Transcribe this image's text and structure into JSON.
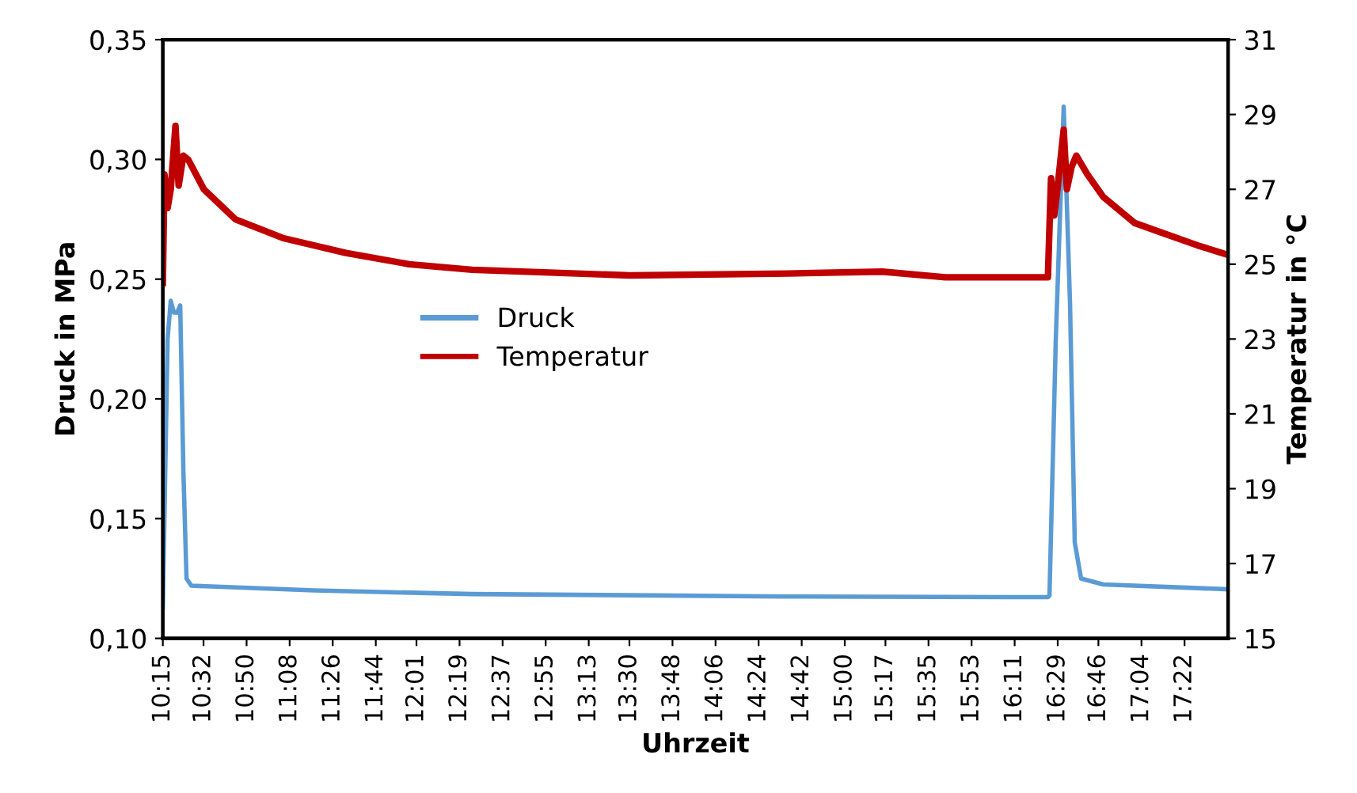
{
  "chart_data": {
    "type": "line",
    "xlabel": "Uhrzeit",
    "ylabel": "Druck in MPa",
    "y2label": "Temperatur in °C",
    "xlim": [
      10.25,
      17.67
    ],
    "xticks": [
      {
        "value": 10.25,
        "label": "10:15"
      },
      {
        "value": 10.5333,
        "label": "10:32"
      },
      {
        "value": 10.8333,
        "label": "10:50"
      },
      {
        "value": 11.1333,
        "label": "11:08"
      },
      {
        "value": 11.4333,
        "label": "11:26"
      },
      {
        "value": 11.7333,
        "label": "11:44"
      },
      {
        "value": 12.0167,
        "label": "12:01"
      },
      {
        "value": 12.3167,
        "label": "12:19"
      },
      {
        "value": 12.6167,
        "label": "12:37"
      },
      {
        "value": 12.9167,
        "label": "12:55"
      },
      {
        "value": 13.2167,
        "label": "13:13"
      },
      {
        "value": 13.5,
        "label": "13:30"
      },
      {
        "value": 13.8,
        "label": "13:48"
      },
      {
        "value": 14.1,
        "label": "14:06"
      },
      {
        "value": 14.4,
        "label": "14:24"
      },
      {
        "value": 14.7,
        "label": "14:42"
      },
      {
        "value": 15.0,
        "label": "15:00"
      },
      {
        "value": 15.2833,
        "label": "15:17"
      },
      {
        "value": 15.5833,
        "label": "15:35"
      },
      {
        "value": 15.8833,
        "label": "15:53"
      },
      {
        "value": 16.1833,
        "label": "16:11"
      },
      {
        "value": 16.4833,
        "label": "16:29"
      },
      {
        "value": 16.7667,
        "label": "16:46"
      },
      {
        "value": 17.0667,
        "label": "17:04"
      },
      {
        "value": 17.3667,
        "label": "17:22"
      }
    ],
    "ylim": [
      0.1,
      0.35
    ],
    "yticks": [
      {
        "value": 0.1,
        "label": "0,10"
      },
      {
        "value": 0.15,
        "label": "0,15"
      },
      {
        "value": 0.2,
        "label": "0,20"
      },
      {
        "value": 0.25,
        "label": "0,25"
      },
      {
        "value": 0.3,
        "label": "0,30"
      },
      {
        "value": 0.35,
        "label": "0,35"
      }
    ],
    "y2lim": [
      15,
      31
    ],
    "y2ticks": [
      15,
      17,
      19,
      21,
      23,
      25,
      27,
      29,
      31
    ],
    "grid": false,
    "legend": "center",
    "marker": "none",
    "line_style": "solid",
    "series": [
      {
        "name": "Druck",
        "color": "#5b9bd5",
        "x": [
          10.25,
          10.283,
          10.305,
          10.327,
          10.349,
          10.371,
          10.393,
          10.415,
          10.448,
          11.305,
          12.404,
          13.503,
          14.602,
          16.415,
          16.426,
          16.47,
          16.525,
          16.569,
          16.602,
          16.646,
          16.8,
          17.668
        ],
        "values": [
          0.113,
          0.225,
          0.241,
          0.236,
          0.236,
          0.239,
          0.17,
          0.125,
          0.122,
          0.12,
          0.1185,
          0.118,
          0.1175,
          0.1172,
          0.118,
          0.225,
          0.322,
          0.24,
          0.14,
          0.125,
          0.1225,
          0.1205
        ]
      },
      {
        "name": "Temperatur",
        "color": "#c00000",
        "axis": "y2",
        "x": [
          10.25,
          10.261,
          10.283,
          10.305,
          10.338,
          10.36,
          10.393,
          10.426,
          10.536,
          10.755,
          11.085,
          11.525,
          11.964,
          12.404,
          13.503,
          14.602,
          15.261,
          15.701,
          16.415,
          16.426,
          16.437,
          16.459,
          16.481,
          16.525,
          16.547,
          16.58,
          16.613,
          16.69,
          16.8,
          17.019,
          17.239,
          17.459,
          17.668
        ],
        "values": [
          24.5,
          27.4,
          26.5,
          27.0,
          28.7,
          27.1,
          27.9,
          27.8,
          27.0,
          26.2,
          25.7,
          25.3,
          25.0,
          24.85,
          24.7,
          24.75,
          24.8,
          24.65,
          24.65,
          26.0,
          27.3,
          26.3,
          27.0,
          28.6,
          27.0,
          27.6,
          27.9,
          27.4,
          26.8,
          26.1,
          25.8,
          25.5,
          25.25
        ]
      }
    ]
  }
}
